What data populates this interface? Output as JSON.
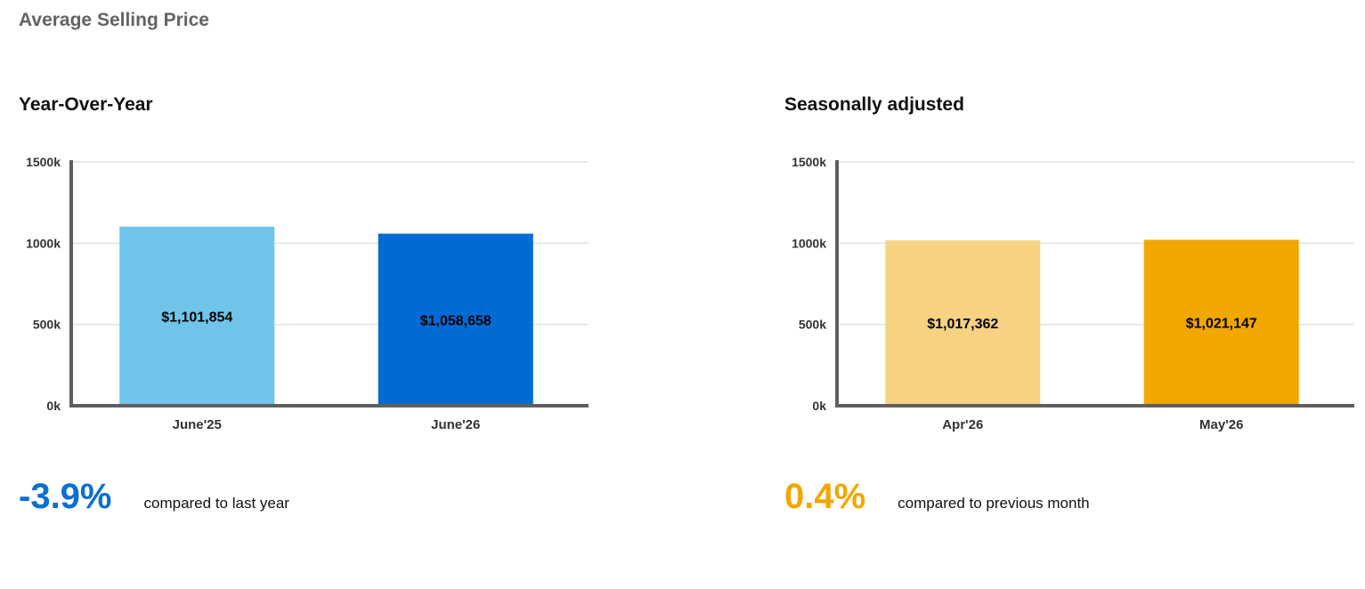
{
  "page": {
    "title": "Average Selling Price"
  },
  "colors": {
    "axis": "#5f5f5f",
    "grid": "#e2e2e2",
    "yoy_prev": "#70c4ea",
    "yoy_curr": "#016bd5",
    "sa_prev": "#f6d282",
    "sa_curr": "#f2a700",
    "yoy_change": "#0b6fd3",
    "sa_change": "#f2a700"
  },
  "panels": {
    "yoy": {
      "title": "Year-Over-Year",
      "change": {
        "value": "-3.9%",
        "text": "compared to last year"
      }
    },
    "sa": {
      "title": "Seasonally adjusted",
      "change": {
        "value": "0.4%",
        "text": "compared to previous month"
      }
    }
  },
  "chart_data": [
    {
      "type": "bar",
      "title": "Year-Over-Year",
      "categories": [
        "June'25",
        "June'26"
      ],
      "values": [
        1101854,
        1058658
      ],
      "value_labels": [
        "$1,101,854",
        "$1,058,658"
      ],
      "ylim": [
        0,
        1500000
      ],
      "yticks": [
        0,
        500000,
        1000000,
        1500000
      ],
      "ytick_labels": [
        "0k",
        "500k",
        "1000k",
        "1500k"
      ],
      "grid": true,
      "xlabel": "",
      "ylabel": ""
    },
    {
      "type": "bar",
      "title": "Seasonally adjusted",
      "categories": [
        "Apr'26",
        "May'26"
      ],
      "values": [
        1017362,
        1021147
      ],
      "value_labels": [
        "$1,017,362",
        "$1,021,147"
      ],
      "ylim": [
        0,
        1500000
      ],
      "yticks": [
        0,
        500000,
        1000000,
        1500000
      ],
      "ytick_labels": [
        "0k",
        "500k",
        "1000k",
        "1500k"
      ],
      "grid": true,
      "xlabel": "",
      "ylabel": ""
    }
  ]
}
